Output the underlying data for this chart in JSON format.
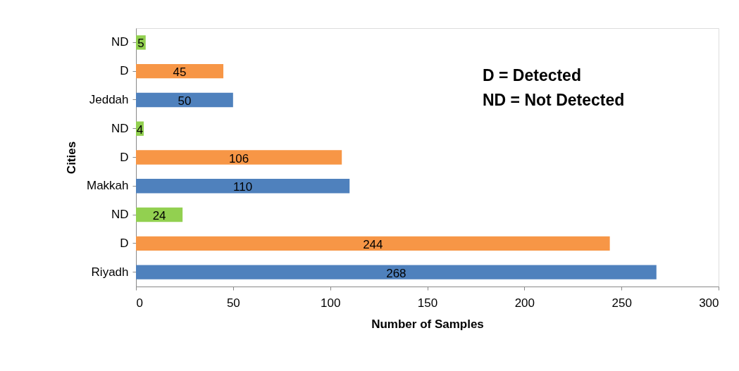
{
  "chart_data": {
    "type": "bar",
    "orientation": "horizontal",
    "xlabel": "Number of Samples",
    "ylabel": "Cities",
    "categories": [
      "ND",
      "D",
      "Jeddah",
      "ND",
      "D",
      "Makkah",
      "ND",
      "D",
      "Riyadh"
    ],
    "values": [
      5,
      45,
      50,
      4,
      106,
      110,
      24,
      244,
      268
    ],
    "colors": [
      "#92d050",
      "#f79646",
      "#4f81bd",
      "#92d050",
      "#f79646",
      "#4f81bd",
      "#92d050",
      "#f79646",
      "#4f81bd"
    ],
    "xlim": [
      0,
      300
    ],
    "xticks": [
      0,
      50,
      100,
      150,
      200,
      250,
      300
    ],
    "data_labels": true,
    "grid": false,
    "annotations": [
      "D = Detected",
      "ND = Not Detected"
    ]
  }
}
